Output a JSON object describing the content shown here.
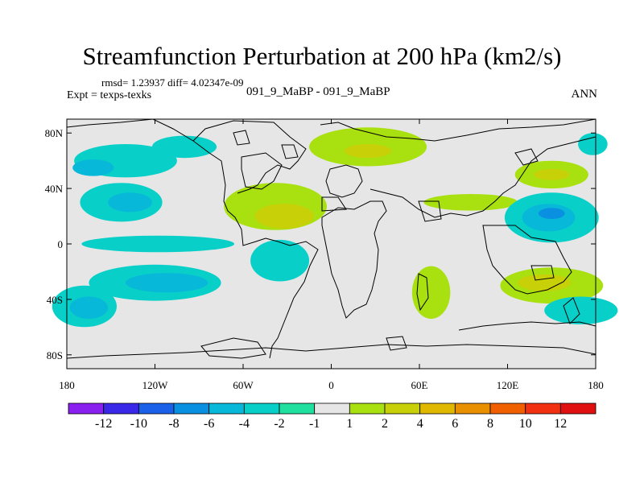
{
  "chart_data": {
    "type": "heatmap",
    "title": "Streamfunction Perturbation at 200 hPa (km2/s)",
    "stats_text": "rmsd= 1.23937 diff= 4.02347e-09",
    "left_label": "Expt = texps-texks",
    "center_label": "091_9_MaBP - 091_9_MaBP",
    "right_label": "ANN",
    "x_axis": {
      "range": [
        -180,
        180
      ],
      "ticks": [
        -180,
        -120,
        -60,
        0,
        60,
        120,
        180
      ],
      "tick_labels": [
        "180",
        "120W",
        "60W",
        "0",
        "60E",
        "120E",
        "180"
      ]
    },
    "y_axis": {
      "range": [
        -90,
        90
      ],
      "ticks": [
        80,
        40,
        0,
        -40,
        -80
      ],
      "tick_labels": [
        "80N",
        "40N",
        "0",
        "40S",
        "80S"
      ]
    },
    "colorbar": {
      "labels": [
        "-12",
        "-10",
        "-8",
        "-6",
        "-4",
        "-2",
        "-1",
        "1",
        "2",
        "4",
        "6",
        "8",
        "10",
        "12"
      ],
      "colors": [
        "#8a20f0",
        "#3a28e8",
        "#1a60e8",
        "#0a90e0",
        "#08b8d8",
        "#08d0c8",
        "#20e0a0",
        "#e6e6e6",
        "#a8e010",
        "#c8d008",
        "#e0b800",
        "#e89000",
        "#f06000",
        "#f03010",
        "#e01010"
      ]
    },
    "features": [
      {
        "name": "nw-pacific-low",
        "lon": -140,
        "lat": 60,
        "rlon": 35,
        "rlat": 12,
        "level": -2
      },
      {
        "name": "nw-pacific-low-a",
        "lon": -100,
        "lat": 70,
        "rlon": 22,
        "rlat": 8,
        "level": -2
      },
      {
        "name": "ne-pacific-low",
        "lon": -143,
        "lat": 30,
        "rlon": 28,
        "rlat": 14,
        "level": -2
      },
      {
        "name": "ne-pacific-low-core",
        "lon": -137,
        "lat": 30,
        "rlon": 15,
        "rlat": 7,
        "level": -4
      },
      {
        "name": "ne-pacific-low-tail",
        "lon": -162,
        "lat": 55,
        "rlon": 14,
        "rlat": 6,
        "level": -4
      },
      {
        "name": "tropical-pacific-low",
        "lon": -118,
        "lat": 0,
        "rlon": 52,
        "rlat": 6,
        "level": -2
      },
      {
        "name": "south-pacific-low",
        "lon": -120,
        "lat": -28,
        "rlon": 45,
        "rlat": 13,
        "level": -2
      },
      {
        "name": "south-pacific-core",
        "lon": -112,
        "lat": -28,
        "rlon": 28,
        "rlat": 7,
        "level": -4
      },
      {
        "name": "sw-pacific-low",
        "lon": -168,
        "lat": -45,
        "rlon": 22,
        "rlat": 15,
        "level": -2
      },
      {
        "name": "sw-pacific-core",
        "lon": -165,
        "lat": -46,
        "rlon": 13,
        "rlat": 8,
        "level": -4
      },
      {
        "name": "n-atlantic-high",
        "lon": -38,
        "lat": 27,
        "rlon": 35,
        "rlat": 17,
        "level": 1
      },
      {
        "name": "n-atlantic-core",
        "lon": -32,
        "lat": 20,
        "rlon": 20,
        "rlat": 9,
        "level": 2
      },
      {
        "name": "s-america-low",
        "lon": -35,
        "lat": -12,
        "rlon": 20,
        "rlat": 15,
        "level": -2
      },
      {
        "name": "eurasia-high",
        "lon": 25,
        "lat": 70,
        "rlon": 40,
        "rlat": 14,
        "level": 1
      },
      {
        "name": "eurasia-core",
        "lon": 25,
        "lat": 67,
        "rlon": 16,
        "rlat": 5,
        "level": 2
      },
      {
        "name": "asia-ridge",
        "lon": 95,
        "lat": 30,
        "rlon": 32,
        "rlat": 6,
        "level": 1
      },
      {
        "name": "s-africa-high",
        "lon": 68,
        "lat": -35,
        "rlon": 13,
        "rlat": 19,
        "level": 1
      },
      {
        "name": "n-pacific-high",
        "lon": 150,
        "lat": 50,
        "rlon": 25,
        "rlat": 10,
        "level": 1
      },
      {
        "name": "n-pacific-core",
        "lon": 150,
        "lat": 50,
        "rlon": 12,
        "rlat": 4,
        "level": 2
      },
      {
        "name": "w-pacific-low",
        "lon": 150,
        "lat": 19,
        "rlon": 32,
        "rlat": 18,
        "level": -2
      },
      {
        "name": "w-pacific-core",
        "lon": 148,
        "lat": 19,
        "rlon": 18,
        "rlat": 10,
        "level": -4
      },
      {
        "name": "w-pacific-core2",
        "lon": 150,
        "lat": 22,
        "rlon": 9,
        "rlat": 4,
        "level": -6
      },
      {
        "name": "arctic-pacific-low",
        "lon": 178,
        "lat": 72,
        "rlon": 10,
        "rlat": 8,
        "level": -2
      },
      {
        "name": "s-indian-high",
        "lon": 150,
        "lat": -30,
        "rlon": 35,
        "rlat": 13,
        "level": 1
      },
      {
        "name": "s-indian-core",
        "lon": 145,
        "lat": -28,
        "rlon": 18,
        "rlat": 6,
        "level": 2
      },
      {
        "name": "s-pacific-east-low",
        "lon": 170,
        "lat": -48,
        "rlon": 25,
        "rlat": 10,
        "level": -2
      }
    ]
  }
}
